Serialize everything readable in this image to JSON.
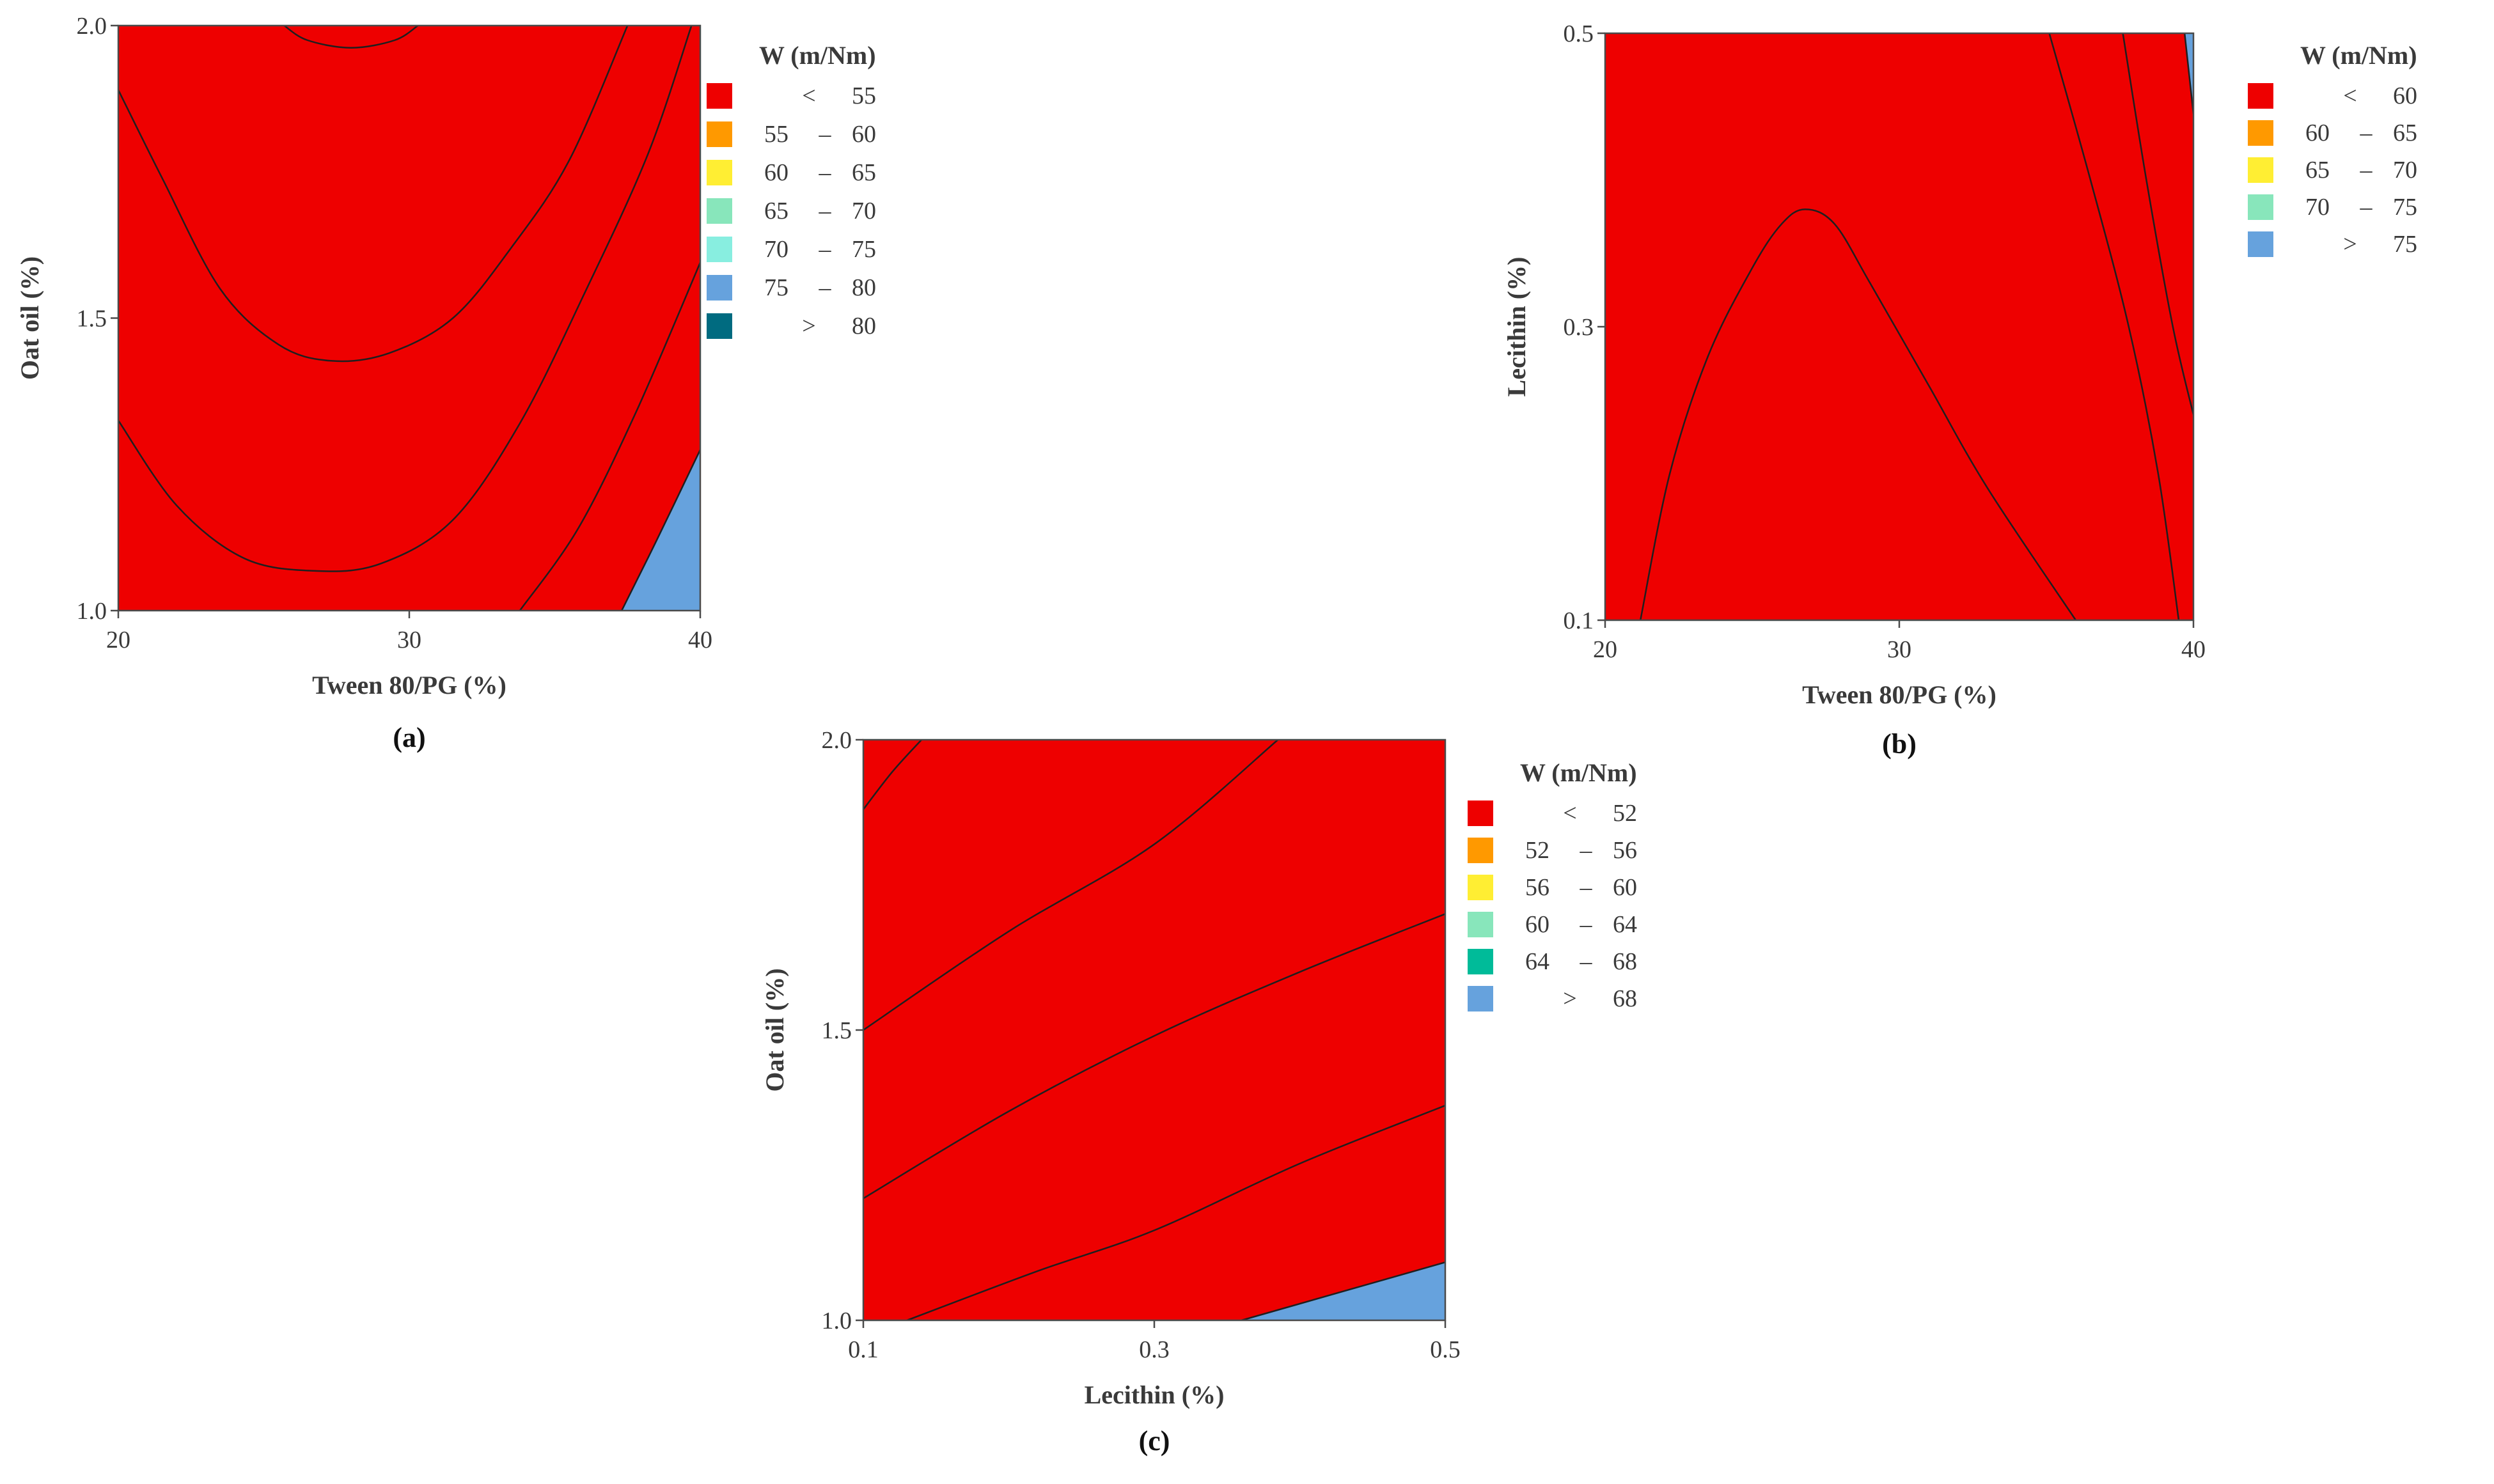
{
  "colors": {
    "red": "#ee0000",
    "orange": "#ff9900",
    "yellow": "#ffee33",
    "light_green": "#88e6bb",
    "cyan": "#88eee0",
    "blue": "#66a2dd",
    "teal": "#006b80",
    "dark_green": "#00bb99"
  },
  "chart_data": [
    {
      "type": "contour",
      "panel_label": "(a)",
      "xlabel": "Tween 80/PG (%)",
      "ylabel": "Oat oil (%)",
      "xlim": [
        20,
        40
      ],
      "ylim": [
        1.0,
        2.0
      ],
      "x_ticks": [
        "20",
        "30",
        "40"
      ],
      "y_ticks": [
        "1.0",
        "1.5",
        "2.0"
      ],
      "legend_title": "W (m/Nm)",
      "legend": [
        {
          "op": "<",
          "lo": "",
          "hi": "55",
          "color": "#ee0000"
        },
        {
          "op": "",
          "lo": "55",
          "hi": "60",
          "color": "#ff9900"
        },
        {
          "op": "",
          "lo": "60",
          "hi": "65",
          "color": "#ffee33"
        },
        {
          "op": "",
          "lo": "65",
          "hi": "70",
          "color": "#88e6bb"
        },
        {
          "op": "",
          "lo": "70",
          "hi": "75",
          "color": "#88eee0"
        },
        {
          "op": "",
          "lo": "75",
          "hi": "80",
          "color": "#66a2dd"
        },
        {
          "op": ">",
          "lo": "",
          "hi": "80",
          "color": "#006b80"
        }
      ],
      "fill_order": [
        "#66a2dd",
        "#88eee0",
        "#88e6bb",
        "#ffee33",
        "#ff9900",
        "#ee0000"
      ],
      "contour_lines": [
        {
          "level": 55,
          "points": [
            [
              25.7,
              2.0
            ],
            [
              26.5,
              1.975
            ],
            [
              28.0,
              1.962
            ],
            [
              29.5,
              1.975
            ],
            [
              30.3,
              2.0
            ]
          ]
        },
        {
          "level": 60,
          "points": [
            [
              20.0,
              1.89
            ],
            [
              21.5,
              1.74
            ],
            [
              23.5,
              1.55
            ],
            [
              25.5,
              1.455
            ],
            [
              27.3,
              1.427
            ],
            [
              29.3,
              1.44
            ],
            [
              31.5,
              1.5
            ],
            [
              33.5,
              1.62
            ],
            [
              35.5,
              1.77
            ],
            [
              37.5,
              2.0
            ]
          ]
        },
        {
          "level": 65,
          "points": [
            [
              20.0,
              1.325
            ],
            [
              22.0,
              1.18
            ],
            [
              24.3,
              1.09
            ],
            [
              26.7,
              1.068
            ],
            [
              29.0,
              1.08
            ],
            [
              31.5,
              1.155
            ],
            [
              33.8,
              1.32
            ],
            [
              36.0,
              1.54
            ],
            [
              38.2,
              1.78
            ],
            [
              39.7,
              2.0
            ]
          ]
        },
        {
          "level": 70,
          "points": [
            [
              33.8,
              1.0
            ],
            [
              35.8,
              1.14
            ],
            [
              37.8,
              1.34
            ],
            [
              40.0,
              1.595
            ]
          ]
        },
        {
          "level": 75,
          "points": [
            [
              37.3,
              1.0
            ],
            [
              38.5,
              1.12
            ],
            [
              40.0,
              1.275
            ]
          ]
        }
      ]
    },
    {
      "type": "contour",
      "panel_label": "(b)",
      "xlabel": "Tween 80/PG (%)",
      "ylabel": "Lecithin (%)",
      "xlim": [
        20,
        40
      ],
      "ylim": [
        0.1,
        0.5
      ],
      "x_ticks": [
        "20",
        "30",
        "40"
      ],
      "y_ticks": [
        "0.1",
        "0.3",
        "0.5"
      ],
      "legend_title": "W (m/Nm)",
      "legend": [
        {
          "op": "<",
          "lo": "",
          "hi": "60",
          "color": "#ee0000"
        },
        {
          "op": "",
          "lo": "60",
          "hi": "65",
          "color": "#ff9900"
        },
        {
          "op": "",
          "lo": "65",
          "hi": "70",
          "color": "#ffee33"
        },
        {
          "op": "",
          "lo": "70",
          "hi": "75",
          "color": "#88e6bb"
        },
        {
          "op": ">",
          "lo": "",
          "hi": "75",
          "color": "#66a2dd"
        }
      ],
      "fill_order": [
        "#66a2dd",
        "#88e6bb",
        "#ffee33",
        "#ff9900",
        "#ee0000"
      ],
      "contour_lines": [
        {
          "level": 60,
          "points": [
            [
              21.2,
              0.1
            ],
            [
              22.2,
              0.2
            ],
            [
              23.5,
              0.28
            ],
            [
              25.0,
              0.34
            ],
            [
              26.0,
              0.37
            ],
            [
              26.8,
              0.38
            ],
            [
              27.8,
              0.37
            ],
            [
              29.0,
              0.33
            ],
            [
              31.0,
              0.26
            ],
            [
              33.0,
              0.19
            ],
            [
              36.0,
              0.1
            ]
          ]
        },
        {
          "level": 65,
          "points": [
            [
              39.5,
              0.1
            ],
            [
              38.8,
              0.2
            ],
            [
              37.8,
              0.3
            ],
            [
              36.5,
              0.4
            ],
            [
              35.1,
              0.5
            ]
          ]
        },
        {
          "level": 70,
          "points": [
            [
              40.0,
              0.24
            ],
            [
              39.3,
              0.3
            ],
            [
              38.4,
              0.4
            ],
            [
              37.6,
              0.5
            ]
          ]
        },
        {
          "level": 75,
          "points": [
            [
              40.0,
              0.445
            ],
            [
              39.7,
              0.5
            ]
          ]
        }
      ]
    },
    {
      "type": "contour",
      "panel_label": "(c)",
      "xlabel": "Lecithin (%)",
      "ylabel": "Oat oil (%)",
      "xlim": [
        0.1,
        0.5
      ],
      "ylim": [
        1.0,
        2.0
      ],
      "x_ticks": [
        "0.1",
        "0.3",
        "0.5"
      ],
      "y_ticks": [
        "1.0",
        "1.5",
        "2.0"
      ],
      "legend_title": "W (m/Nm)",
      "legend": [
        {
          "op": "<",
          "lo": "",
          "hi": "52",
          "color": "#ee0000"
        },
        {
          "op": "",
          "lo": "52",
          "hi": "56",
          "color": "#ff9900"
        },
        {
          "op": "",
          "lo": "56",
          "hi": "60",
          "color": "#ffee33"
        },
        {
          "op": "",
          "lo": "60",
          "hi": "64",
          "color": "#88e6bb"
        },
        {
          "op": "",
          "lo": "64",
          "hi": "68",
          "color": "#00bb99"
        },
        {
          "op": ">",
          "lo": "",
          "hi": "68",
          "color": "#66a2dd"
        }
      ],
      "fill_order": [
        "#66a2dd",
        "#00bb99",
        "#88e6bb",
        "#ffee33",
        "#ff9900",
        "#ee0000"
      ],
      "contour_lines": [
        {
          "level": 52,
          "points": [
            [
              0.1,
              1.88
            ],
            [
              0.12,
              1.945
            ],
            [
              0.14,
              2.0
            ]
          ]
        },
        {
          "level": 56,
          "points": [
            [
              0.1,
              1.5
            ],
            [
              0.2,
              1.67
            ],
            [
              0.3,
              1.82
            ],
            [
              0.385,
              2.0
            ]
          ]
        },
        {
          "level": 60,
          "points": [
            [
              0.1,
              1.21
            ],
            [
              0.2,
              1.36
            ],
            [
              0.3,
              1.49
            ],
            [
              0.4,
              1.6
            ],
            [
              0.5,
              1.7
            ]
          ]
        },
        {
          "level": 64,
          "points": [
            [
              0.13,
              1.0
            ],
            [
              0.22,
              1.085
            ],
            [
              0.3,
              1.155
            ],
            [
              0.4,
              1.27
            ],
            [
              0.5,
              1.37
            ]
          ]
        },
        {
          "level": 68,
          "points": [
            [
              0.36,
              1.0
            ],
            [
              0.43,
              1.05
            ],
            [
              0.5,
              1.1
            ]
          ]
        }
      ]
    }
  ]
}
